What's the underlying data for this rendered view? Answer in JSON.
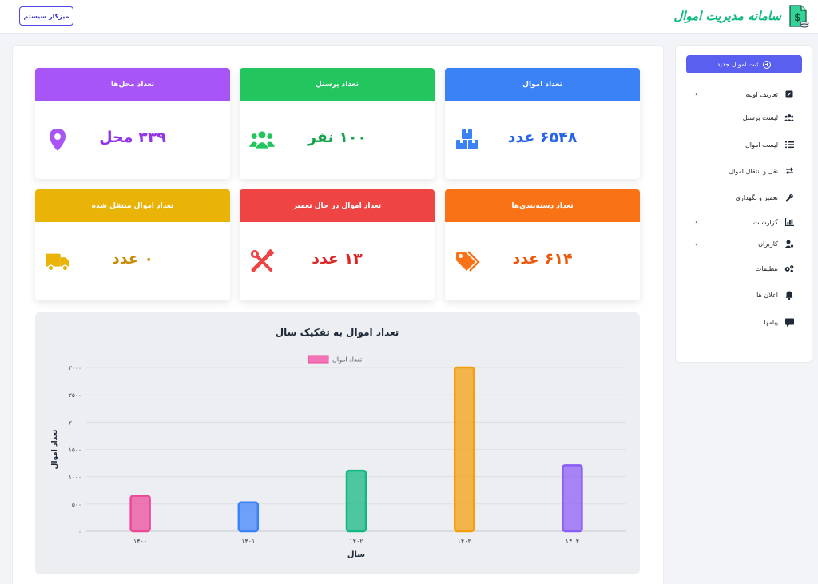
{
  "header": {
    "brand": "سامانه مدیریت اموال",
    "admin_button": "میزکار سیستم"
  },
  "sidebar": {
    "new_button": "ثبت اموال جدید",
    "items": [
      {
        "label": "تعاریف اولیه",
        "icon": "edit-icon",
        "chevron": true
      },
      {
        "label": "لیست پرسنل",
        "icon": "users-icon",
        "chevron": false
      },
      {
        "label": "لیست اموال",
        "icon": "list-icon",
        "chevron": false
      },
      {
        "label": "نقل و انتقال اموال",
        "icon": "exchange-icon",
        "chevron": false
      },
      {
        "label": "تعمیر و نگهداری",
        "icon": "wrench-icon",
        "chevron": false
      },
      {
        "label": "گزارشات",
        "icon": "chart-icon",
        "chevron": true
      },
      {
        "label": "کاربران",
        "icon": "user-gear-icon",
        "chevron": true
      },
      {
        "label": "تنظیمات",
        "icon": "gears-icon",
        "chevron": false
      },
      {
        "label": "اعلان ها",
        "icon": "bell-icon",
        "chevron": false
      },
      {
        "label": "پیامها",
        "icon": "message-icon",
        "chevron": false
      }
    ]
  },
  "cards": [
    {
      "title": "تعداد اموال",
      "value": "۶۵۴۸ عدد",
      "color": "#3b82f6",
      "text_color": "#2563eb",
      "icon": "boxes-icon"
    },
    {
      "title": "تعداد پرسنل",
      "value": "۱۰۰ نفر",
      "color": "#22c55e",
      "text_color": "#16a34a",
      "icon": "users-icon"
    },
    {
      "title": "تعداد محل‌ها",
      "value": "۳۳۹ محل",
      "color": "#a855f7",
      "text_color": "#9333ea",
      "icon": "map-pin-icon"
    },
    {
      "title": "تعداد دسته‌بندی‌ها",
      "value": "۶۱۴ عدد",
      "color": "#f97316",
      "text_color": "#ea580c",
      "icon": "tags-icon"
    },
    {
      "title": "تعداد اموال در حال تعمیر",
      "value": "۱۳ عدد",
      "color": "#ef4444",
      "text_color": "#dc2626",
      "icon": "tools-icon"
    },
    {
      "title": "تعداد اموال منتقل شده",
      "value": "۰ عدد",
      "color": "#eab308",
      "text_color": "#ca8a04",
      "icon": "truck-icon"
    }
  ],
  "chart_data": {
    "type": "bar",
    "title": "تعداد اموال به تفکیک سال",
    "xlabel": "سال",
    "ylabel": "تعداد اموال",
    "categories": [
      "۱۴۰۰",
      "۱۴۰۱",
      "۱۴۰۲",
      "۱۴۰۳",
      "۱۴۰۴"
    ],
    "series": [
      {
        "name": "تعداد اموال",
        "values": [
          650,
          530,
          1110,
          3000,
          1210
        ]
      }
    ],
    "colors": [
      "#ec4899",
      "#3b82f6",
      "#10b981",
      "#f59e0b",
      "#8b5cf6"
    ],
    "ylim": [
      0,
      3000
    ],
    "yticks": [
      0,
      500,
      1000,
      1500,
      2000,
      2500,
      3000
    ],
    "ytick_labels": [
      "۰",
      "۵۰۰",
      "۱۰۰۰",
      "۱۵۰۰",
      "۲۰۰۰",
      "۲۵۰۰",
      "۳۰۰۰"
    ],
    "grid": true,
    "legend": "top-center"
  }
}
